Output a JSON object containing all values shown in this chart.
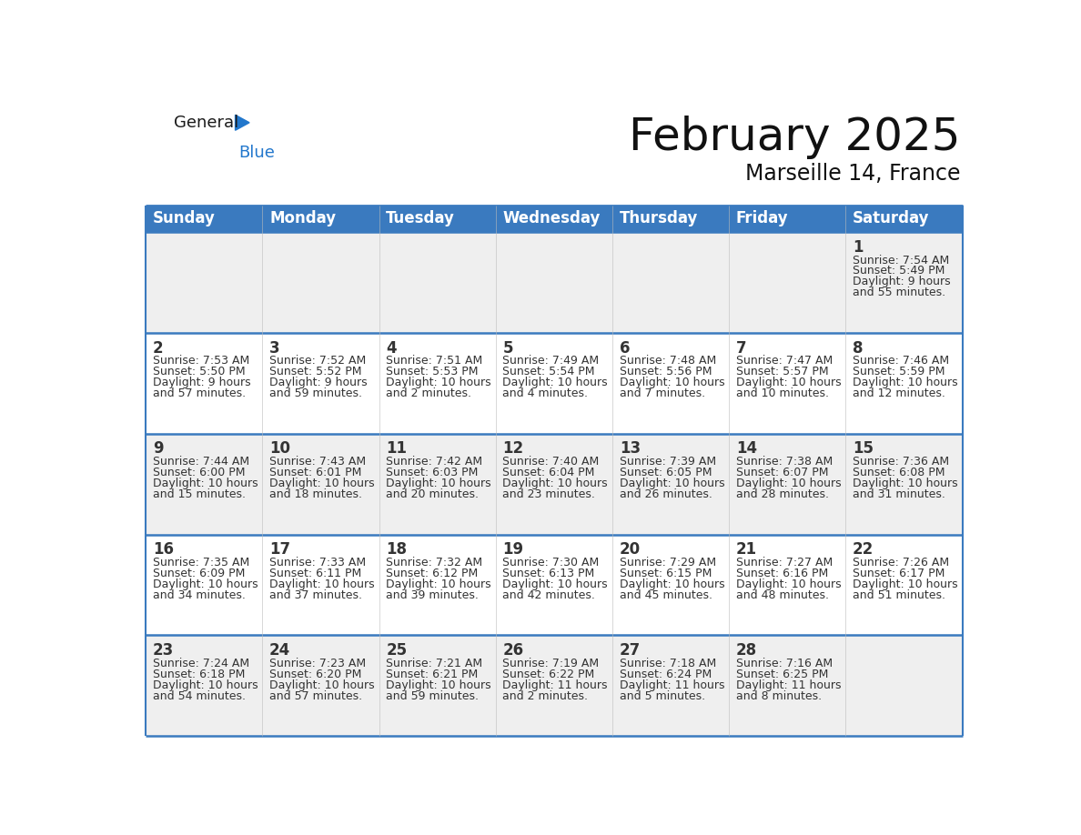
{
  "title": "February 2025",
  "subtitle": "Marseille 14, France",
  "days_of_week": [
    "Sunday",
    "Monday",
    "Tuesday",
    "Wednesday",
    "Thursday",
    "Friday",
    "Saturday"
  ],
  "header_bg": "#3a7abf",
  "header_text_color": "#ffffff",
  "cell_bg_even": "#efefef",
  "cell_bg_odd": "#ffffff",
  "row0_bg": "#efefef",
  "border_color": "#3a7abf",
  "divider_color": "#3a7abf",
  "text_color": "#333333",
  "logo_general_color": "#1a1a1a",
  "logo_blue_color": "#2277cc",
  "logo_triangle_color": "#2277cc",
  "calendar_data": [
    {
      "day": 1,
      "week_row": 0,
      "col": 6,
      "sunrise": "7:54 AM",
      "sunset": "5:49 PM",
      "daylight": "9 hours and 55 minutes."
    },
    {
      "day": 2,
      "week_row": 1,
      "col": 0,
      "sunrise": "7:53 AM",
      "sunset": "5:50 PM",
      "daylight": "9 hours and 57 minutes."
    },
    {
      "day": 3,
      "week_row": 1,
      "col": 1,
      "sunrise": "7:52 AM",
      "sunset": "5:52 PM",
      "daylight": "9 hours and 59 minutes."
    },
    {
      "day": 4,
      "week_row": 1,
      "col": 2,
      "sunrise": "7:51 AM",
      "sunset": "5:53 PM",
      "daylight": "10 hours and 2 minutes."
    },
    {
      "day": 5,
      "week_row": 1,
      "col": 3,
      "sunrise": "7:49 AM",
      "sunset": "5:54 PM",
      "daylight": "10 hours and 4 minutes."
    },
    {
      "day": 6,
      "week_row": 1,
      "col": 4,
      "sunrise": "7:48 AM",
      "sunset": "5:56 PM",
      "daylight": "10 hours and 7 minutes."
    },
    {
      "day": 7,
      "week_row": 1,
      "col": 5,
      "sunrise": "7:47 AM",
      "sunset": "5:57 PM",
      "daylight": "10 hours and 10 minutes."
    },
    {
      "day": 8,
      "week_row": 1,
      "col": 6,
      "sunrise": "7:46 AM",
      "sunset": "5:59 PM",
      "daylight": "10 hours and 12 minutes."
    },
    {
      "day": 9,
      "week_row": 2,
      "col": 0,
      "sunrise": "7:44 AM",
      "sunset": "6:00 PM",
      "daylight": "10 hours and 15 minutes."
    },
    {
      "day": 10,
      "week_row": 2,
      "col": 1,
      "sunrise": "7:43 AM",
      "sunset": "6:01 PM",
      "daylight": "10 hours and 18 minutes."
    },
    {
      "day": 11,
      "week_row": 2,
      "col": 2,
      "sunrise": "7:42 AM",
      "sunset": "6:03 PM",
      "daylight": "10 hours and 20 minutes."
    },
    {
      "day": 12,
      "week_row": 2,
      "col": 3,
      "sunrise": "7:40 AM",
      "sunset": "6:04 PM",
      "daylight": "10 hours and 23 minutes."
    },
    {
      "day": 13,
      "week_row": 2,
      "col": 4,
      "sunrise": "7:39 AM",
      "sunset": "6:05 PM",
      "daylight": "10 hours and 26 minutes."
    },
    {
      "day": 14,
      "week_row": 2,
      "col": 5,
      "sunrise": "7:38 AM",
      "sunset": "6:07 PM",
      "daylight": "10 hours and 28 minutes."
    },
    {
      "day": 15,
      "week_row": 2,
      "col": 6,
      "sunrise": "7:36 AM",
      "sunset": "6:08 PM",
      "daylight": "10 hours and 31 minutes."
    },
    {
      "day": 16,
      "week_row": 3,
      "col": 0,
      "sunrise": "7:35 AM",
      "sunset": "6:09 PM",
      "daylight": "10 hours and 34 minutes."
    },
    {
      "day": 17,
      "week_row": 3,
      "col": 1,
      "sunrise": "7:33 AM",
      "sunset": "6:11 PM",
      "daylight": "10 hours and 37 minutes."
    },
    {
      "day": 18,
      "week_row": 3,
      "col": 2,
      "sunrise": "7:32 AM",
      "sunset": "6:12 PM",
      "daylight": "10 hours and 39 minutes."
    },
    {
      "day": 19,
      "week_row": 3,
      "col": 3,
      "sunrise": "7:30 AM",
      "sunset": "6:13 PM",
      "daylight": "10 hours and 42 minutes."
    },
    {
      "day": 20,
      "week_row": 3,
      "col": 4,
      "sunrise": "7:29 AM",
      "sunset": "6:15 PM",
      "daylight": "10 hours and 45 minutes."
    },
    {
      "day": 21,
      "week_row": 3,
      "col": 5,
      "sunrise": "7:27 AM",
      "sunset": "6:16 PM",
      "daylight": "10 hours and 48 minutes."
    },
    {
      "day": 22,
      "week_row": 3,
      "col": 6,
      "sunrise": "7:26 AM",
      "sunset": "6:17 PM",
      "daylight": "10 hours and 51 minutes."
    },
    {
      "day": 23,
      "week_row": 4,
      "col": 0,
      "sunrise": "7:24 AM",
      "sunset": "6:18 PM",
      "daylight": "10 hours and 54 minutes."
    },
    {
      "day": 24,
      "week_row": 4,
      "col": 1,
      "sunrise": "7:23 AM",
      "sunset": "6:20 PM",
      "daylight": "10 hours and 57 minutes."
    },
    {
      "day": 25,
      "week_row": 4,
      "col": 2,
      "sunrise": "7:21 AM",
      "sunset": "6:21 PM",
      "daylight": "10 hours and 59 minutes."
    },
    {
      "day": 26,
      "week_row": 4,
      "col": 3,
      "sunrise": "7:19 AM",
      "sunset": "6:22 PM",
      "daylight": "11 hours and 2 minutes."
    },
    {
      "day": 27,
      "week_row": 4,
      "col": 4,
      "sunrise": "7:18 AM",
      "sunset": "6:24 PM",
      "daylight": "11 hours and 5 minutes."
    },
    {
      "day": 28,
      "week_row": 4,
      "col": 5,
      "sunrise": "7:16 AM",
      "sunset": "6:25 PM",
      "daylight": "11 hours and 8 minutes."
    }
  ],
  "num_rows": 5,
  "num_cols": 7,
  "title_fontsize": 36,
  "subtitle_fontsize": 17,
  "header_fontsize": 12,
  "day_num_fontsize": 12,
  "cell_text_fontsize": 9
}
